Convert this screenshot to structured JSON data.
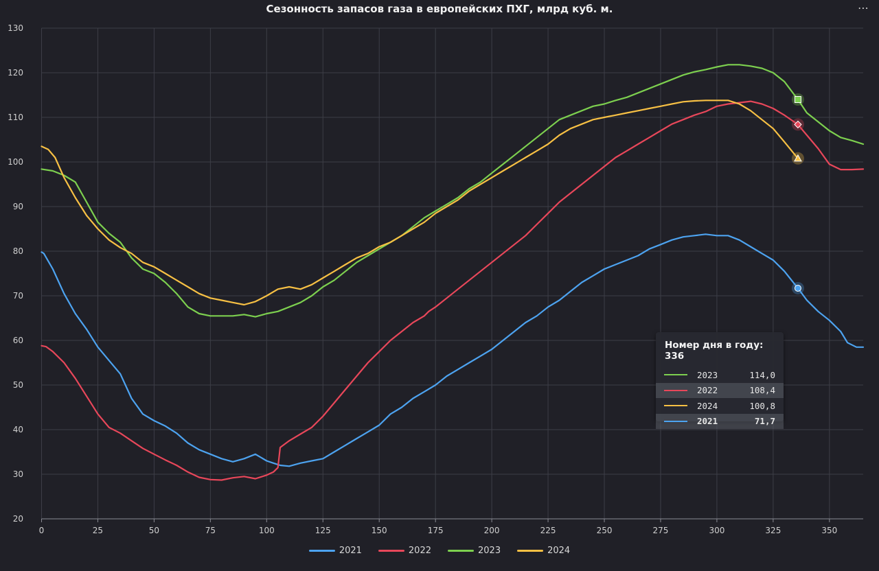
{
  "chart_data": {
    "type": "line",
    "title": "Сезонность запасов газа в европейских ПХГ, млрд куб. м.",
    "xlim": [
      0,
      365
    ],
    "ylim": [
      20,
      130
    ],
    "x_ticks": [
      0,
      25,
      50,
      75,
      100,
      125,
      150,
      175,
      200,
      225,
      250,
      275,
      300,
      325,
      350
    ],
    "y_ticks": [
      20,
      30,
      40,
      50,
      60,
      70,
      80,
      90,
      100,
      110,
      120,
      130
    ],
    "grid": true,
    "legend_position": "bottom",
    "series": [
      {
        "name": "2021",
        "color": "#4da3f0",
        "points": [
          [
            0,
            79.8
          ],
          [
            1,
            79.5
          ],
          [
            5,
            76
          ],
          [
            10,
            70.5
          ],
          [
            15,
            66
          ],
          [
            20,
            62.5
          ],
          [
            25,
            58.5
          ],
          [
            30,
            55.5
          ],
          [
            35,
            52.5
          ],
          [
            40,
            47
          ],
          [
            45,
            43.5
          ],
          [
            50,
            42
          ],
          [
            55,
            40.8
          ],
          [
            60,
            39.2
          ],
          [
            65,
            37
          ],
          [
            70,
            35.5
          ],
          [
            75,
            34.5
          ],
          [
            80,
            33.5
          ],
          [
            85,
            32.8
          ],
          [
            90,
            33.5
          ],
          [
            95,
            34.5
          ],
          [
            100,
            33
          ],
          [
            103,
            32.5
          ],
          [
            106,
            32
          ],
          [
            110,
            31.8
          ],
          [
            115,
            32.5
          ],
          [
            120,
            33
          ],
          [
            125,
            33.5
          ],
          [
            130,
            35
          ],
          [
            135,
            36.5
          ],
          [
            140,
            38
          ],
          [
            145,
            39.5
          ],
          [
            150,
            41
          ],
          [
            155,
            43.5
          ],
          [
            160,
            45
          ],
          [
            165,
            47
          ],
          [
            170,
            48.5
          ],
          [
            175,
            50
          ],
          [
            180,
            52
          ],
          [
            185,
            53.5
          ],
          [
            190,
            55
          ],
          [
            195,
            56.5
          ],
          [
            200,
            58
          ],
          [
            205,
            60
          ],
          [
            210,
            62
          ],
          [
            215,
            64
          ],
          [
            220,
            65.5
          ],
          [
            225,
            67.5
          ],
          [
            230,
            69
          ],
          [
            235,
            71
          ],
          [
            240,
            73
          ],
          [
            245,
            74.5
          ],
          [
            250,
            76
          ],
          [
            255,
            77
          ],
          [
            260,
            78
          ],
          [
            265,
            79
          ],
          [
            270,
            80.5
          ],
          [
            275,
            81.5
          ],
          [
            280,
            82.5
          ],
          [
            285,
            83.2
          ],
          [
            290,
            83.5
          ],
          [
            295,
            83.8
          ],
          [
            300,
            83.5
          ],
          [
            305,
            83.5
          ],
          [
            310,
            82.5
          ],
          [
            315,
            81
          ],
          [
            320,
            79.5
          ],
          [
            325,
            78
          ],
          [
            330,
            75.5
          ],
          [
            336,
            71.7
          ],
          [
            340,
            69
          ],
          [
            345,
            66.5
          ],
          [
            350,
            64.5
          ],
          [
            355,
            62
          ],
          [
            358,
            59.5
          ],
          [
            362,
            58.5
          ],
          [
            365,
            58.5
          ]
        ]
      },
      {
        "name": "2022",
        "color": "#e8475a",
        "points": [
          [
            0,
            58.8
          ],
          [
            2,
            58.6
          ],
          [
            5,
            57.5
          ],
          [
            10,
            55
          ],
          [
            15,
            51.5
          ],
          [
            20,
            47.5
          ],
          [
            25,
            43.5
          ],
          [
            30,
            40.5
          ],
          [
            35,
            39.2
          ],
          [
            40,
            37.5
          ],
          [
            45,
            35.8
          ],
          [
            50,
            34.5
          ],
          [
            55,
            33.2
          ],
          [
            60,
            32
          ],
          [
            65,
            30.5
          ],
          [
            70,
            29.3
          ],
          [
            75,
            28.8
          ],
          [
            80,
            28.7
          ],
          [
            85,
            29.2
          ],
          [
            90,
            29.5
          ],
          [
            95,
            29
          ],
          [
            100,
            29.8
          ],
          [
            103,
            30.5
          ],
          [
            105,
            31.5
          ],
          [
            106,
            36
          ],
          [
            110,
            37.5
          ],
          [
            115,
            39
          ],
          [
            120,
            40.5
          ],
          [
            125,
            43
          ],
          [
            130,
            46
          ],
          [
            135,
            49
          ],
          [
            140,
            52
          ],
          [
            145,
            55
          ],
          [
            150,
            57.5
          ],
          [
            155,
            60
          ],
          [
            160,
            62
          ],
          [
            165,
            64
          ],
          [
            170,
            65.5
          ],
          [
            172,
            66.5
          ],
          [
            175,
            67.5
          ],
          [
            180,
            69.5
          ],
          [
            185,
            71.5
          ],
          [
            190,
            73.5
          ],
          [
            195,
            75.5
          ],
          [
            200,
            77.5
          ],
          [
            205,
            79.5
          ],
          [
            210,
            81.5
          ],
          [
            215,
            83.5
          ],
          [
            220,
            86
          ],
          [
            225,
            88.5
          ],
          [
            230,
            91
          ],
          [
            235,
            93
          ],
          [
            240,
            95
          ],
          [
            245,
            97
          ],
          [
            250,
            99
          ],
          [
            255,
            101
          ],
          [
            260,
            102.5
          ],
          [
            265,
            104
          ],
          [
            270,
            105.5
          ],
          [
            275,
            107
          ],
          [
            280,
            108.5
          ],
          [
            285,
            109.5
          ],
          [
            290,
            110.5
          ],
          [
            295,
            111.3
          ],
          [
            300,
            112.5
          ],
          [
            305,
            113
          ],
          [
            310,
            113.3
          ],
          [
            315,
            113.6
          ],
          [
            320,
            113
          ],
          [
            325,
            112
          ],
          [
            330,
            110.5
          ],
          [
            336,
            108.4
          ],
          [
            340,
            106
          ],
          [
            345,
            103
          ],
          [
            350,
            99.5
          ],
          [
            355,
            98.3
          ],
          [
            360,
            98.3
          ],
          [
            365,
            98.4
          ]
        ]
      },
      {
        "name": "2023",
        "color": "#7dd04f",
        "points": [
          [
            0,
            98.4
          ],
          [
            5,
            98
          ],
          [
            10,
            97
          ],
          [
            15,
            95.5
          ],
          [
            20,
            91
          ],
          [
            25,
            86.5
          ],
          [
            30,
            84
          ],
          [
            35,
            82
          ],
          [
            40,
            78.5
          ],
          [
            45,
            76
          ],
          [
            50,
            75
          ],
          [
            55,
            73
          ],
          [
            60,
            70.5
          ],
          [
            65,
            67.5
          ],
          [
            70,
            66
          ],
          [
            75,
            65.5
          ],
          [
            80,
            65.5
          ],
          [
            85,
            65.5
          ],
          [
            90,
            65.8
          ],
          [
            95,
            65.3
          ],
          [
            100,
            66
          ],
          [
            105,
            66.5
          ],
          [
            110,
            67.5
          ],
          [
            115,
            68.5
          ],
          [
            120,
            70
          ],
          [
            125,
            72
          ],
          [
            130,
            73.5
          ],
          [
            135,
            75.5
          ],
          [
            140,
            77.5
          ],
          [
            145,
            79
          ],
          [
            150,
            80.5
          ],
          [
            155,
            82
          ],
          [
            160,
            83.5
          ],
          [
            165,
            85.5
          ],
          [
            170,
            87.5
          ],
          [
            175,
            89
          ],
          [
            180,
            90.5
          ],
          [
            185,
            92
          ],
          [
            190,
            94
          ],
          [
            195,
            95.5
          ],
          [
            200,
            97.5
          ],
          [
            205,
            99.5
          ],
          [
            210,
            101.5
          ],
          [
            215,
            103.5
          ],
          [
            220,
            105.5
          ],
          [
            225,
            107.5
          ],
          [
            230,
            109.5
          ],
          [
            235,
            110.5
          ],
          [
            240,
            111.5
          ],
          [
            245,
            112.5
          ],
          [
            250,
            113
          ],
          [
            255,
            113.8
          ],
          [
            260,
            114.5
          ],
          [
            265,
            115.5
          ],
          [
            270,
            116.5
          ],
          [
            275,
            117.5
          ],
          [
            280,
            118.5
          ],
          [
            285,
            119.5
          ],
          [
            290,
            120.2
          ],
          [
            295,
            120.7
          ],
          [
            300,
            121.3
          ],
          [
            305,
            121.8
          ],
          [
            310,
            121.8
          ],
          [
            315,
            121.5
          ],
          [
            320,
            121
          ],
          [
            325,
            120
          ],
          [
            330,
            118
          ],
          [
            336,
            114
          ],
          [
            340,
            111
          ],
          [
            345,
            109
          ],
          [
            350,
            107
          ],
          [
            355,
            105.5
          ],
          [
            360,
            104.8
          ],
          [
            365,
            104
          ]
        ]
      },
      {
        "name": "2024",
        "color": "#f7c044",
        "points": [
          [
            0,
            103.5
          ],
          [
            3,
            102.8
          ],
          [
            6,
            101
          ],
          [
            10,
            96.5
          ],
          [
            15,
            92
          ],
          [
            20,
            88
          ],
          [
            25,
            85
          ],
          [
            30,
            82.5
          ],
          [
            35,
            80.8
          ],
          [
            40,
            79.5
          ],
          [
            45,
            77.5
          ],
          [
            50,
            76.5
          ],
          [
            55,
            75
          ],
          [
            60,
            73.5
          ],
          [
            65,
            72
          ],
          [
            70,
            70.5
          ],
          [
            75,
            69.5
          ],
          [
            80,
            69
          ],
          [
            85,
            68.5
          ],
          [
            90,
            68
          ],
          [
            95,
            68.7
          ],
          [
            100,
            70
          ],
          [
            105,
            71.5
          ],
          [
            110,
            72
          ],
          [
            115,
            71.5
          ],
          [
            120,
            72.5
          ],
          [
            125,
            74
          ],
          [
            130,
            75.5
          ],
          [
            135,
            77
          ],
          [
            140,
            78.5
          ],
          [
            145,
            79.5
          ],
          [
            150,
            81
          ],
          [
            155,
            82
          ],
          [
            160,
            83.5
          ],
          [
            165,
            85
          ],
          [
            170,
            86.5
          ],
          [
            175,
            88.5
          ],
          [
            180,
            90
          ],
          [
            185,
            91.5
          ],
          [
            190,
            93.5
          ],
          [
            195,
            95
          ],
          [
            200,
            96.5
          ],
          [
            205,
            98
          ],
          [
            210,
            99.5
          ],
          [
            215,
            101
          ],
          [
            220,
            102.5
          ],
          [
            225,
            104
          ],
          [
            230,
            106
          ],
          [
            235,
            107.5
          ],
          [
            240,
            108.5
          ],
          [
            245,
            109.5
          ],
          [
            250,
            110
          ],
          [
            255,
            110.5
          ],
          [
            260,
            111
          ],
          [
            265,
            111.5
          ],
          [
            270,
            112
          ],
          [
            275,
            112.5
          ],
          [
            280,
            113
          ],
          [
            285,
            113.5
          ],
          [
            290,
            113.7
          ],
          [
            295,
            113.8
          ],
          [
            300,
            113.8
          ],
          [
            305,
            113.8
          ],
          [
            310,
            113
          ],
          [
            315,
            111.5
          ],
          [
            320,
            109.5
          ],
          [
            325,
            107.5
          ],
          [
            330,
            104.5
          ],
          [
            336,
            100.8
          ]
        ]
      }
    ],
    "hover": {
      "day": 336,
      "markers": [
        {
          "series": "2023",
          "value": 114.0,
          "shape": "square"
        },
        {
          "series": "2022",
          "value": 108.4,
          "shape": "diamond"
        },
        {
          "series": "2024",
          "value": 100.8,
          "shape": "triangle"
        },
        {
          "series": "2021",
          "value": 71.7,
          "shape": "circle"
        }
      ]
    }
  },
  "tooltip": {
    "header": "Номер дня в году: 336",
    "rows": [
      {
        "year": "2023",
        "value": "114,0",
        "color": "#7dd04f"
      },
      {
        "year": "2022",
        "value": "108,4",
        "color": "#e8475a"
      },
      {
        "year": "2024",
        "value": "100,8",
        "color": "#f7c044"
      },
      {
        "year": "2021",
        "value": "71,7",
        "color": "#4da3f0"
      }
    ]
  },
  "legend": [
    {
      "label": "2021",
      "color": "#4da3f0"
    },
    {
      "label": "2022",
      "color": "#e8475a"
    },
    {
      "label": "2023",
      "color": "#7dd04f"
    },
    {
      "label": "2024",
      "color": "#f7c044"
    }
  ],
  "menu_icon": "more-horizontal-icon"
}
